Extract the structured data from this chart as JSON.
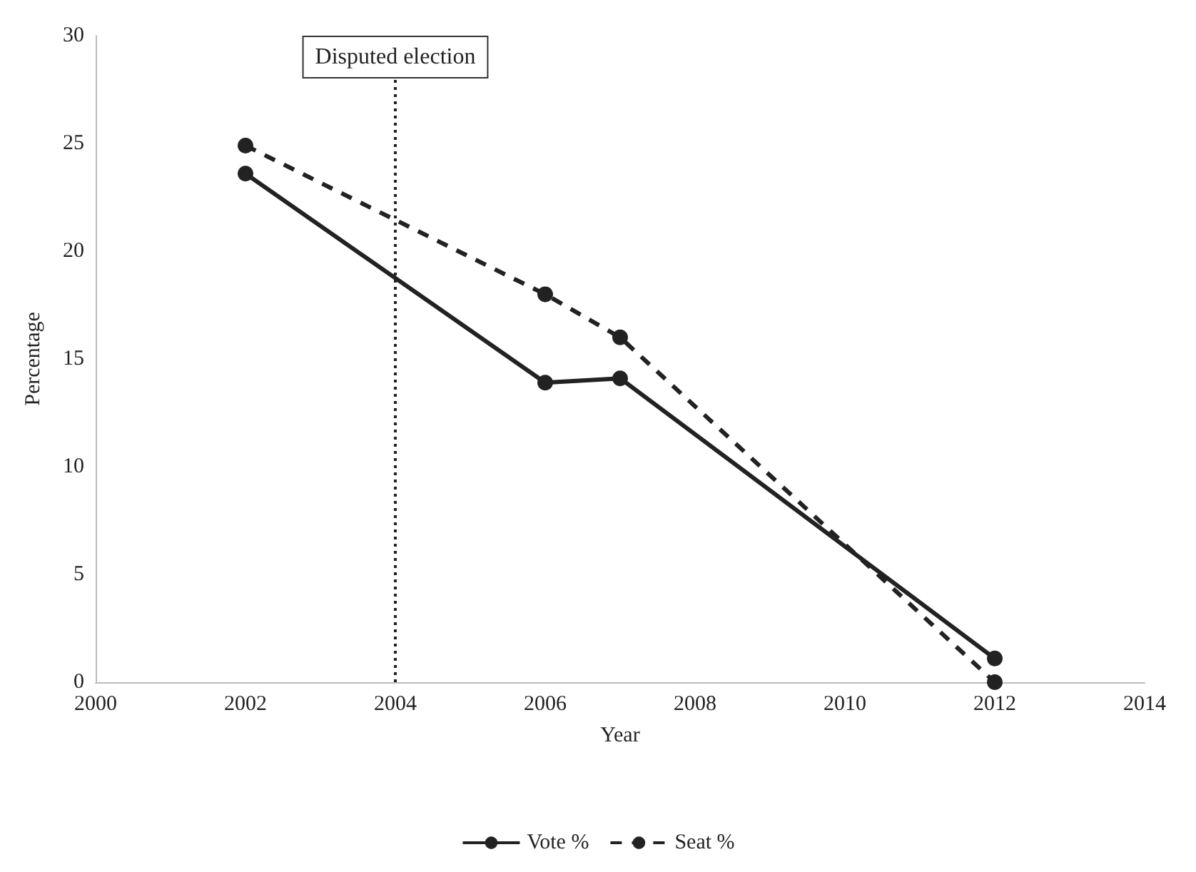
{
  "chart_data": {
    "type": "line",
    "xlabel": "Year",
    "ylabel": "Percentage",
    "x": [
      2002,
      2006,
      2007,
      2012
    ],
    "series": [
      {
        "name": "Vote %",
        "color": "#222222",
        "values": [
          23.6,
          13.9,
          14.1,
          1.1
        ],
        "line_style": "solid"
      },
      {
        "name": "Seat %",
        "color": "#222222",
        "values": [
          24.9,
          18.0,
          16.0,
          0.0
        ],
        "line_style": "dashed"
      }
    ],
    "xlim": [
      2000,
      2014
    ],
    "xticks": [
      2000,
      2002,
      2004,
      2006,
      2008,
      2010,
      2012,
      2014
    ],
    "ylim": [
      0,
      30
    ],
    "yticks": [
      0,
      5,
      10,
      15,
      20,
      25,
      30
    ],
    "ref_lines": [
      {
        "axis": "x",
        "value": 2004,
        "label": "Disputed election",
        "line_style": "dotted",
        "color": "#222222"
      }
    ],
    "grid": false,
    "legend": "bottom",
    "marker": "circle"
  }
}
